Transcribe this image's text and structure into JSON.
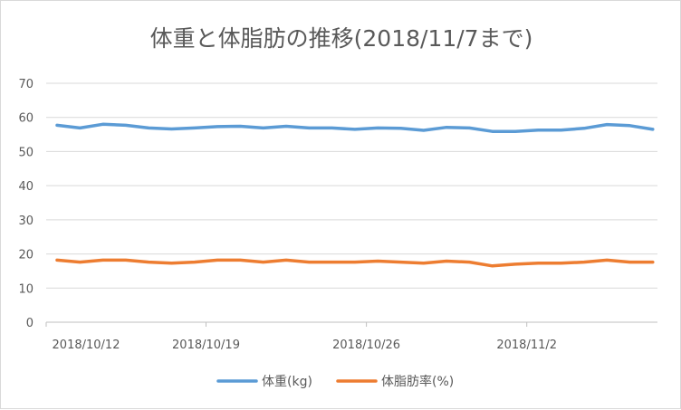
{
  "chart_data": {
    "type": "line",
    "title": "体重と体脂肪の推移(2018/11/7まで)",
    "xlabel": "",
    "ylabel": "",
    "ylim": [
      0,
      70
    ],
    "yticks": [
      0,
      10,
      20,
      30,
      40,
      50,
      60,
      70
    ],
    "grid": true,
    "legend_position": "bottom",
    "x_tick_labels": [
      "2018/10/12",
      "2018/10/19",
      "2018/10/26",
      "2018/11/2"
    ],
    "x": [
      "2018/10/12",
      "2018/10/13",
      "2018/10/14",
      "2018/10/15",
      "2018/10/16",
      "2018/10/17",
      "2018/10/18",
      "2018/10/19",
      "2018/10/20",
      "2018/10/21",
      "2018/10/22",
      "2018/10/23",
      "2018/10/24",
      "2018/10/25",
      "2018/10/26",
      "2018/10/27",
      "2018/10/28",
      "2018/10/29",
      "2018/10/30",
      "2018/10/31",
      "2018/11/1",
      "2018/11/2",
      "2018/11/3",
      "2018/11/4",
      "2018/11/5",
      "2018/11/6",
      "2018/11/7"
    ],
    "series": [
      {
        "name": "体重(kg)",
        "color": "#5b9bd5",
        "values": [
          57.7,
          56.9,
          58.0,
          57.7,
          56.9,
          56.6,
          56.9,
          57.3,
          57.4,
          56.9,
          57.4,
          56.9,
          56.9,
          56.5,
          56.9,
          56.8,
          56.2,
          57.1,
          56.9,
          55.9,
          55.9,
          56.3,
          56.3,
          56.8,
          57.9,
          57.6,
          56.5
        ]
      },
      {
        "name": "体脂肪率(%)",
        "color": "#ed7d31",
        "values": [
          18.2,
          17.6,
          18.2,
          18.2,
          17.6,
          17.3,
          17.6,
          18.2,
          18.2,
          17.6,
          18.2,
          17.6,
          17.6,
          17.6,
          17.9,
          17.6,
          17.3,
          17.9,
          17.6,
          16.5,
          17.0,
          17.3,
          17.3,
          17.6,
          18.2,
          17.6,
          17.6
        ]
      }
    ]
  }
}
